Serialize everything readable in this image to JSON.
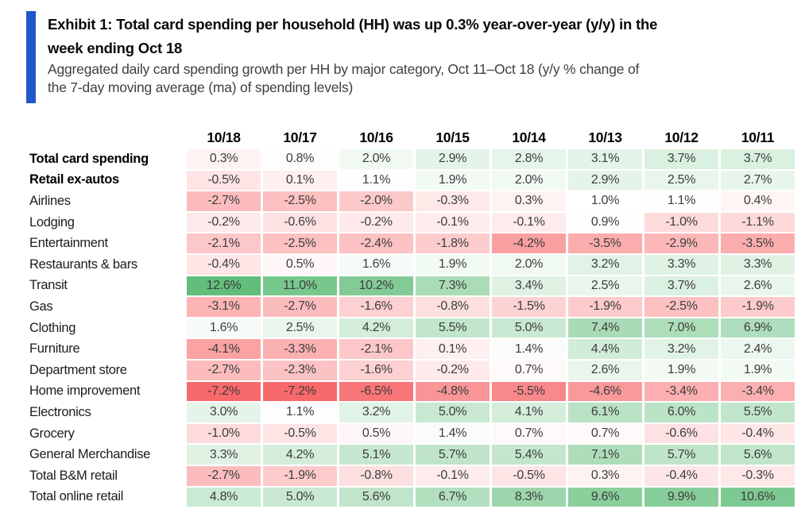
{
  "header": {
    "title_lines": [
      "Exhibit 1: Total card spending per household (HH) was up 0.3% year-over-year (y/y) in the",
      "week ending Oct 18"
    ],
    "subtitle_lines": [
      "Aggregated daily card spending growth per HH by major category, Oct 11–Oct 18 (y/y % change of",
      "the 7-day moving average (ma) of spending levels)"
    ],
    "accent_color": "#2057C9"
  },
  "chart_data": {
    "type": "heatmap",
    "title": "Exhibit 1: Total card spending per household (HH) was up 0.3% year-over-year (y/y) in the week ending Oct 18",
    "subtitle": "Aggregated daily card spending growth per HH by major category, Oct 11–Oct 18 (y/y % change of the 7-day moving average (ma) of spending levels)",
    "value_unit": "percent",
    "columns": [
      "10/18",
      "10/17",
      "10/16",
      "10/15",
      "10/14",
      "10/13",
      "10/12",
      "10/11"
    ],
    "rows": [
      {
        "label": "Total card spending",
        "bold": true,
        "values": [
          0.3,
          0.8,
          2.0,
          2.9,
          2.8,
          3.1,
          3.7,
          3.7
        ]
      },
      {
        "label": "Retail ex-autos",
        "bold": true,
        "values": [
          -0.5,
          0.1,
          1.1,
          1.9,
          2.0,
          2.9,
          2.5,
          2.7
        ]
      },
      {
        "label": "Airlines",
        "bold": false,
        "values": [
          -2.7,
          -2.5,
          -2.0,
          -0.3,
          0.3,
          1.0,
          1.1,
          0.4
        ]
      },
      {
        "label": "Lodging",
        "bold": false,
        "values": [
          -0.2,
          -0.6,
          -0.2,
          -0.1,
          -0.1,
          0.9,
          -1.0,
          -1.1
        ]
      },
      {
        "label": "Entertainment",
        "bold": false,
        "values": [
          -2.1,
          -2.5,
          -2.4,
          -1.8,
          -4.2,
          -3.5,
          -2.9,
          -3.5
        ]
      },
      {
        "label": "Restaurants & bars",
        "bold": false,
        "values": [
          -0.4,
          0.5,
          1.6,
          1.9,
          2.0,
          3.2,
          3.3,
          3.3
        ]
      },
      {
        "label": "Transit",
        "bold": false,
        "values": [
          12.6,
          11.0,
          10.2,
          7.3,
          3.4,
          2.5,
          3.7,
          2.6
        ]
      },
      {
        "label": "Gas",
        "bold": false,
        "values": [
          -3.1,
          -2.7,
          -1.6,
          -0.8,
          -1.5,
          -1.9,
          -2.5,
          -1.9
        ]
      },
      {
        "label": "Clothing",
        "bold": false,
        "values": [
          1.6,
          2.5,
          4.2,
          5.5,
          5.0,
          7.4,
          7.0,
          6.9
        ]
      },
      {
        "label": "Furniture",
        "bold": false,
        "values": [
          -4.1,
          -3.3,
          -2.1,
          0.1,
          1.4,
          4.4,
          3.2,
          2.4
        ]
      },
      {
        "label": "Department store",
        "bold": false,
        "values": [
          -2.7,
          -2.3,
          -1.6,
          -0.2,
          0.7,
          2.6,
          1.9,
          1.9
        ]
      },
      {
        "label": "Home improvement",
        "bold": false,
        "values": [
          -7.2,
          -7.2,
          -6.5,
          -4.8,
          -5.5,
          -4.6,
          -3.4,
          -3.4
        ]
      },
      {
        "label": "Electronics",
        "bold": false,
        "values": [
          3.0,
          1.1,
          3.2,
          5.0,
          4.1,
          6.1,
          6.0,
          5.5
        ]
      },
      {
        "label": "Grocery",
        "bold": false,
        "values": [
          -1.0,
          -0.5,
          0.5,
          1.4,
          0.7,
          0.7,
          -0.6,
          -0.4
        ]
      },
      {
        "label": "General Merchandise",
        "bold": false,
        "values": [
          3.3,
          4.2,
          5.1,
          5.7,
          5.4,
          7.1,
          5.7,
          5.6
        ]
      },
      {
        "label": "Total B&M retail",
        "bold": false,
        "values": [
          -2.7,
          -1.9,
          -0.8,
          -0.1,
          -0.5,
          0.3,
          -0.4,
          -0.3
        ]
      },
      {
        "label": "Total online retail",
        "bold": false,
        "values": [
          4.8,
          5.0,
          5.6,
          6.7,
          8.3,
          9.6,
          9.9,
          10.6
        ]
      }
    ],
    "color_scale": {
      "min": -7.2,
      "mid": 0.95,
      "max": 12.6,
      "min_color": "#F8696B",
      "mid_color": "#FFFFFF",
      "max_color": "#63BE7B"
    },
    "layout": {
      "legend": false,
      "grid": false
    }
  }
}
